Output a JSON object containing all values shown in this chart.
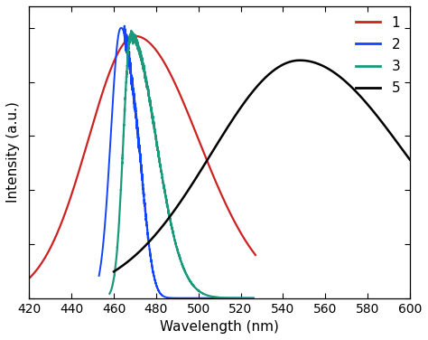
{
  "xlabel": "Wavelength (nm)",
  "ylabel": "Intensity (a.u.)",
  "xlim": [
    420,
    600
  ],
  "ylim": [
    0,
    1.08
  ],
  "xticks": [
    420,
    440,
    460,
    480,
    500,
    520,
    540,
    560,
    580,
    600
  ],
  "legend_labels": [
    "1",
    "2",
    "3",
    "5"
  ],
  "legend_colors": [
    "#cc2222",
    "#1144ff",
    "#1a9a7a",
    "#000000"
  ],
  "background_color": "#ffffff",
  "figsize": [
    4.74,
    3.76
  ],
  "dpi": 100
}
